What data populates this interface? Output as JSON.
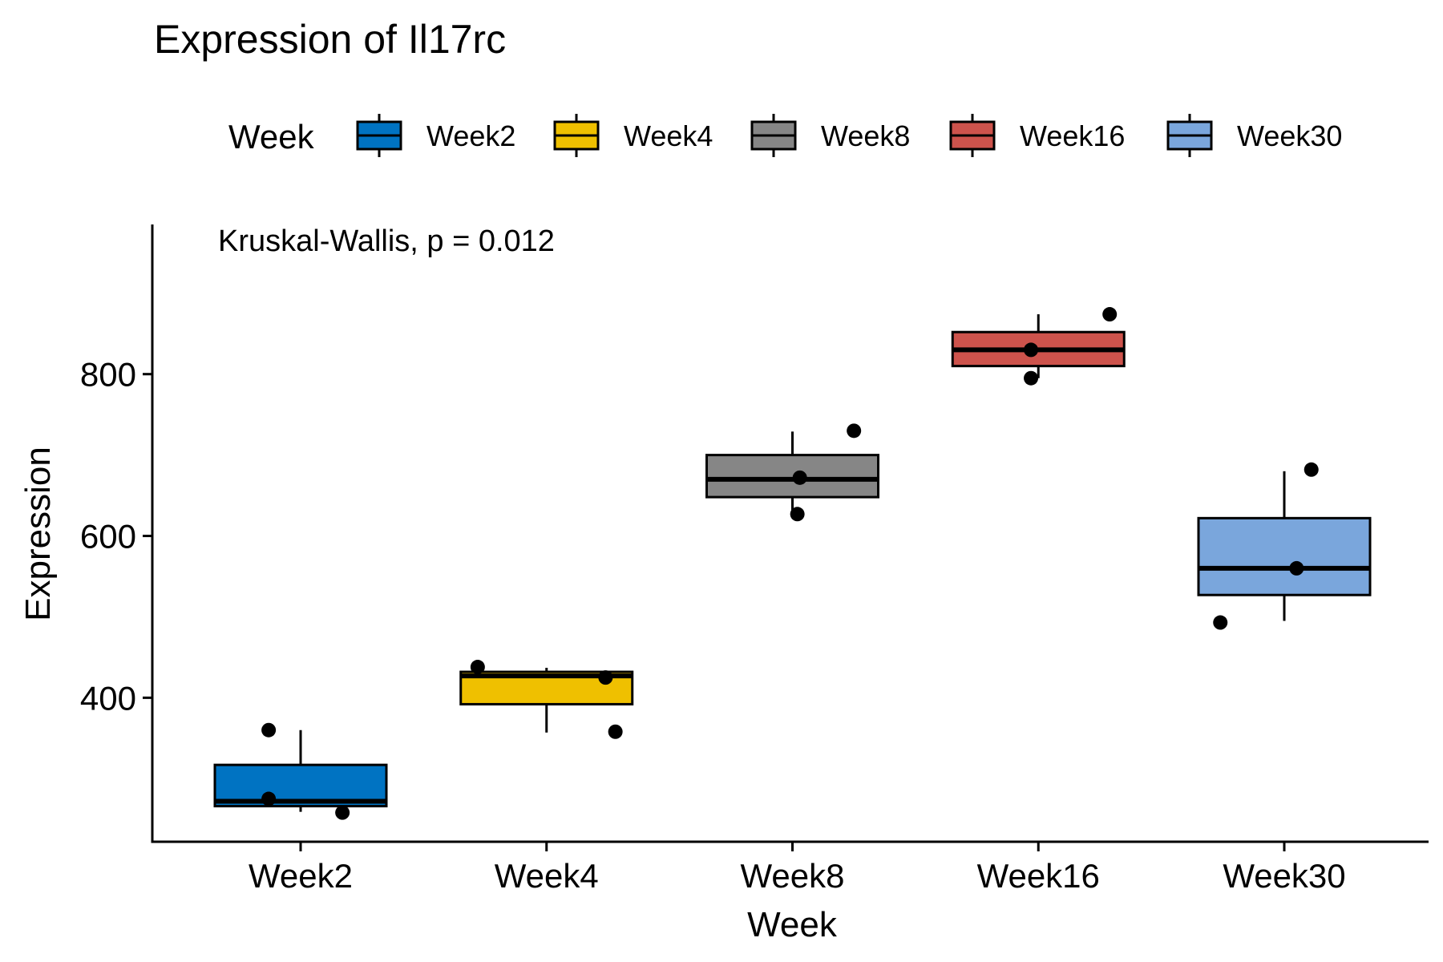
{
  "chart_data": {
    "type": "box",
    "title": "Expression of Il17rc",
    "xlabel": "Week",
    "ylabel": "Expression",
    "annotation": "Kruskal-Wallis, p = 0.012",
    "legend": {
      "title": "Week",
      "placement": "top"
    },
    "ylim": [
      222,
      985
    ],
    "yticks": [
      400,
      600,
      800
    ],
    "grid": false,
    "categories": [
      "Week2",
      "Week4",
      "Week8",
      "Week16",
      "Week30"
    ],
    "series": [
      {
        "name": "Week2",
        "color": "#0073C2",
        "q1": 266,
        "median": 272,
        "q3": 317,
        "whisker_low": 259,
        "whisker_high": 360,
        "points": [
          {
            "dx": -0.13,
            "y": 360
          },
          {
            "dx": -0.13,
            "y": 275
          },
          {
            "dx": 0.17,
            "y": 258
          }
        ]
      },
      {
        "name": "Week4",
        "color": "#EFC000",
        "q1": 392,
        "median": 427,
        "q3": 432,
        "whisker_low": 357,
        "whisker_high": 437,
        "points": [
          {
            "dx": -0.28,
            "y": 438
          },
          {
            "dx": 0.24,
            "y": 425
          },
          {
            "dx": 0.28,
            "y": 358
          }
        ]
      },
      {
        "name": "Week8",
        "color": "#868686",
        "q1": 648,
        "median": 670,
        "q3": 700,
        "whisker_low": 627,
        "whisker_high": 729,
        "points": [
          {
            "dx": 0.25,
            "y": 730
          },
          {
            "dx": 0.03,
            "y": 672
          },
          {
            "dx": 0.02,
            "y": 627
          }
        ]
      },
      {
        "name": "Week16",
        "color": "#CD534C",
        "q1": 810,
        "median": 830,
        "q3": 852,
        "whisker_low": 795,
        "whisker_high": 874,
        "points": [
          {
            "dx": 0.29,
            "y": 874
          },
          {
            "dx": -0.03,
            "y": 830
          },
          {
            "dx": -0.03,
            "y": 795
          }
        ]
      },
      {
        "name": "Week30",
        "color": "#7AA6DC",
        "q1": 527,
        "median": 560,
        "q3": 622,
        "whisker_low": 495,
        "whisker_high": 680,
        "points": [
          {
            "dx": 0.11,
            "y": 682
          },
          {
            "dx": 0.05,
            "y": 560
          },
          {
            "dx": -0.26,
            "y": 493
          }
        ]
      }
    ]
  }
}
